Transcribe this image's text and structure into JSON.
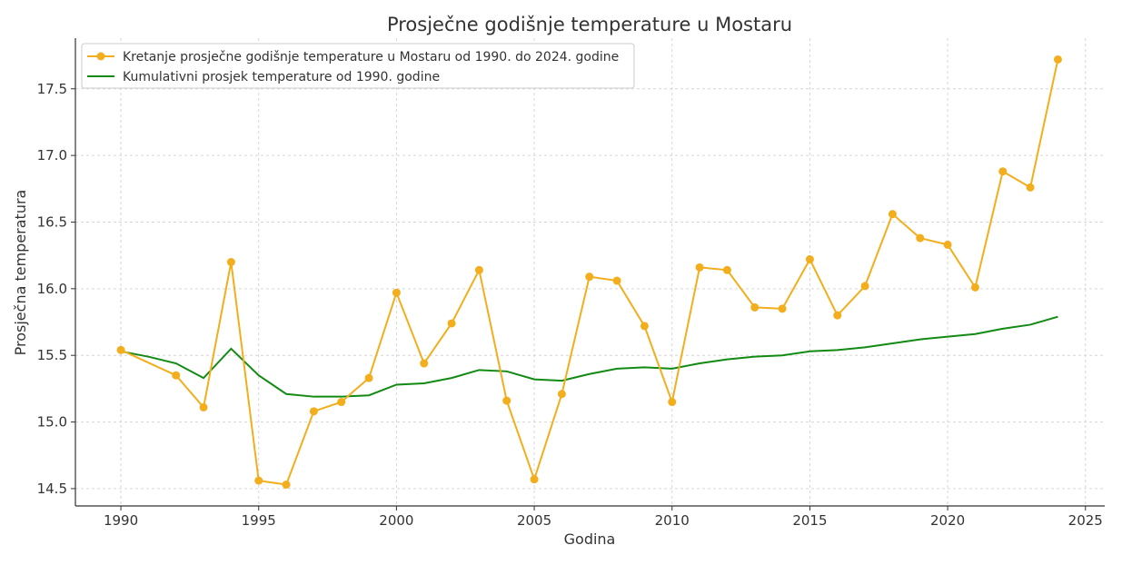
{
  "chart_data": {
    "type": "line",
    "title": "Prosječne godišnje temperature u Mostaru",
    "xlabel": "Godina",
    "ylabel": "Prosječna temperatura",
    "xlim": [
      1988.35,
      2025.7
    ],
    "ylim": [
      14.37,
      17.88
    ],
    "xticks": [
      1990,
      1995,
      2000,
      2005,
      2010,
      2015,
      2020,
      2025
    ],
    "yticks": [
      14.5,
      15.0,
      15.5,
      16.0,
      16.5,
      17.0,
      17.5
    ],
    "ytick_labels": [
      "14.5",
      "15.0",
      "15.5",
      "16.0",
      "16.5",
      "17.0",
      "17.5"
    ],
    "grid": true,
    "legend_position": "top-left",
    "series": [
      {
        "name": "Kretanje prosječne godišnje temperature u Mostaru od 1990. do 2024. godine",
        "color": "#f2ae1c",
        "marker": "circle",
        "x": [
          1990,
          1992,
          1993,
          1994,
          1995,
          1996,
          1997,
          1998,
          1999,
          2000,
          2001,
          2002,
          2003,
          2004,
          2005,
          2006,
          2007,
          2008,
          2009,
          2010,
          2011,
          2012,
          2013,
          2014,
          2015,
          2016,
          2017,
          2018,
          2019,
          2020,
          2021,
          2022,
          2023,
          2024
        ],
        "y": [
          15.54,
          15.35,
          15.11,
          16.2,
          14.56,
          14.53,
          15.08,
          15.15,
          15.33,
          15.97,
          15.44,
          15.74,
          16.14,
          15.16,
          14.57,
          15.21,
          16.09,
          16.06,
          15.72,
          15.15,
          16.16,
          16.14,
          15.86,
          15.85,
          16.22,
          15.8,
          16.02,
          16.56,
          16.38,
          16.33,
          16.01,
          16.88,
          16.76,
          17.72
        ]
      },
      {
        "name": "Kumulativni prosjek temperature od 1990. godine",
        "color": "#138a13",
        "marker": "none",
        "x": [
          1990,
          1991,
          1992,
          1993,
          1994,
          1995,
          1996,
          1997,
          1998,
          1999,
          2000,
          2001,
          2002,
          2003,
          2004,
          2005,
          2006,
          2007,
          2008,
          2009,
          2010,
          2011,
          2012,
          2013,
          2014,
          2015,
          2016,
          2017,
          2018,
          2019,
          2020,
          2021,
          2022,
          2023,
          2024
        ],
        "y": [
          15.53,
          15.49,
          15.44,
          15.33,
          15.55,
          15.35,
          15.21,
          15.19,
          15.19,
          15.2,
          15.28,
          15.29,
          15.33,
          15.39,
          15.38,
          15.32,
          15.31,
          15.36,
          15.4,
          15.41,
          15.4,
          15.44,
          15.47,
          15.49,
          15.5,
          15.53,
          15.54,
          15.56,
          15.59,
          15.62,
          15.64,
          15.66,
          15.7,
          15.73,
          15.79
        ]
      }
    ]
  }
}
